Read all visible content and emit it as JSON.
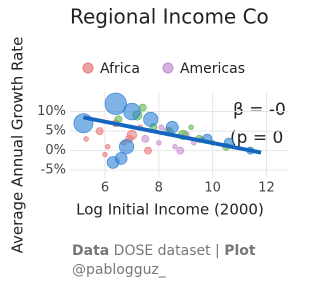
{
  "chart_data": {
    "type": "scatter",
    "title": "Regional Income Co",
    "xlabel": "Log Initial Income (2000)",
    "ylabel": "Average Annual Growth Rate",
    "xlim": [
      4.7,
      12.8
    ],
    "ylim": [
      -7,
      15
    ],
    "xticks": [
      6,
      8,
      10,
      12
    ],
    "yticks": [
      {
        "value": 10,
        "label": "10%"
      },
      {
        "value": 5,
        "label": "5%"
      },
      {
        "value": 0,
        "label": "0%"
      },
      {
        "value": -5,
        "label": "-5%"
      }
    ],
    "grid": true,
    "series": [
      {
        "name": "Africa",
        "color": "#e8787a",
        "x": [
          5.3,
          5.8,
          6.1,
          6.4,
          6.7,
          7.0,
          7.3,
          7.6,
          6.0,
          6.9
        ],
        "values": [
          3,
          5,
          1,
          7,
          2,
          4,
          6,
          0,
          -1,
          3
        ],
        "sizes": [
          2,
          3,
          2,
          3,
          2,
          4,
          2,
          3,
          2,
          3
        ]
      },
      {
        "name": "Americas",
        "color": "#c490d1",
        "x": [
          7.5,
          8.0,
          8.3,
          8.6,
          9.0,
          9.3,
          8.8,
          9.6,
          8.1
        ],
        "values": [
          3,
          2,
          5,
          1,
          4,
          2,
          0,
          3,
          6
        ],
        "sizes": [
          3,
          2,
          3,
          2,
          3,
          2,
          3,
          2,
          2
        ]
      },
      {
        "color": "#5fb84a",
        "x": [
          6.5,
          7.2,
          7.8,
          8.4,
          8.9,
          9.5,
          10.0,
          10.5,
          7.4,
          9.2
        ],
        "values": [
          8,
          9,
          6,
          5,
          4,
          3,
          2,
          1,
          11,
          6
        ],
        "sizes": [
          3,
          4,
          3,
          3,
          4,
          3,
          2,
          3,
          3,
          2
        ]
      },
      {
        "color": "#2a7fd4",
        "x": [
          5.2,
          6.4,
          6.6,
          7.0,
          7.7,
          8.5,
          9.8,
          10.6,
          11.4,
          6.3,
          6.8
        ],
        "values": [
          7,
          12,
          -2,
          10,
          8,
          6,
          3,
          2,
          0,
          -3,
          1
        ],
        "sizes": [
          8,
          9,
          5,
          7,
          6,
          5,
          4,
          4,
          3,
          5,
          6
        ]
      }
    ],
    "fit_line": {
      "color": "#1565c0",
      "x": [
        5.2,
        11.8
      ],
      "values": [
        8.5,
        -0.5
      ]
    },
    "annotations": [
      "β = -0",
      "(p = 0"
    ],
    "caption": {
      "data_label": "Data",
      "data_text": "DOSE dataset |",
      "plot_label": "Plot",
      "plot_text": "@pablogguz_"
    }
  }
}
